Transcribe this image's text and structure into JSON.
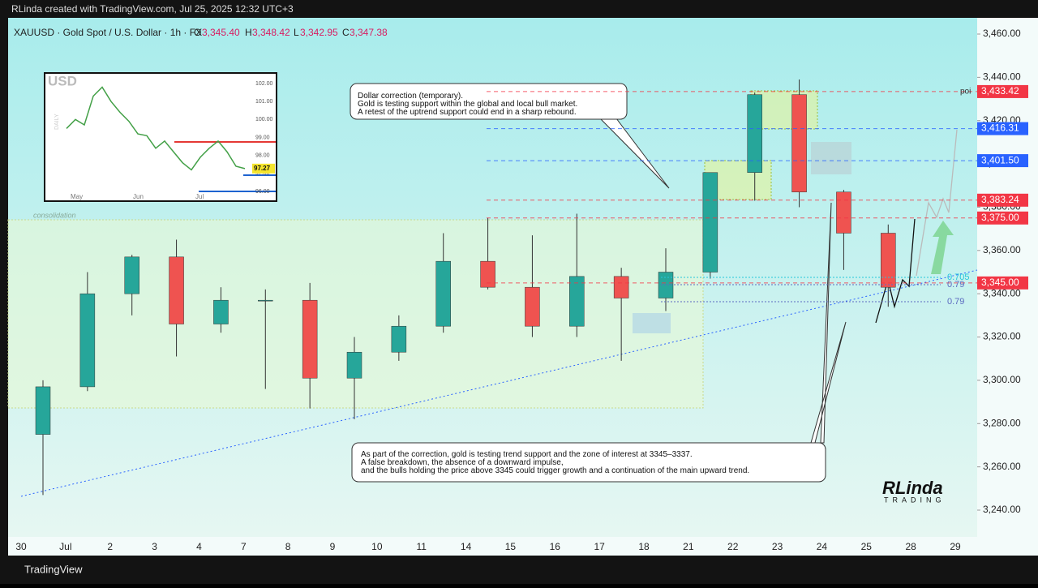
{
  "header": {
    "credit": "RLinda created with TradingView.com, Jul 25, 2025 12:32 UTC+3",
    "symbol": "XAUUSD · Gold Spot / U.S. Dollar · 1h · FX",
    "open_label": "O",
    "open": "3,345.40",
    "high_label": "H",
    "high": "3,348.42",
    "low_label": "L",
    "low": "3,342.95",
    "close_label": "C",
    "close": "3,347.38"
  },
  "chart_data": {
    "type": "candlestick",
    "categories": [
      "30",
      "Jul",
      "2",
      "3",
      "4",
      "7",
      "8",
      "9",
      "10",
      "11",
      "14",
      "15",
      "16",
      "17",
      "18",
      "21",
      "22",
      "23",
      "24",
      "25",
      "28",
      "29"
    ],
    "open": [
      3275,
      3297,
      3340,
      3357,
      3326,
      3337,
      3337,
      3301,
      3313,
      3325,
      3355,
      3343,
      3325,
      3348,
      3338,
      3350,
      3396,
      3432,
      3387,
      3368,
      null,
      null
    ],
    "high": [
      3300,
      3350,
      3358,
      3365,
      3343,
      3342,
      3345,
      3320,
      3330,
      3368,
      3375,
      3367,
      3377,
      3352,
      3361,
      3396,
      3433,
      3439,
      3388,
      3372,
      null,
      null
    ],
    "low": [
      3247,
      3295,
      3330,
      3311,
      3322,
      3296,
      3287,
      3282,
      3309,
      3322,
      3342,
      3320,
      3320,
      3309,
      3332,
      3347,
      3383,
      3380,
      3351,
      3334,
      null,
      null
    ],
    "close": [
      3297,
      3340,
      3357,
      3326,
      3337,
      3337,
      3301,
      3313,
      3325,
      3355,
      3343,
      3325,
      3348,
      3338,
      3350,
      3396,
      3432,
      3387,
      3368,
      3343,
      null,
      null
    ],
    "up_color": "#26a69a",
    "down_color": "#ef5350",
    "ylim": [
      3232,
      3467
    ],
    "yticks": [
      {
        "value": 3240,
        "label": "3,240.00"
      },
      {
        "value": 3260,
        "label": "3,260.00"
      },
      {
        "value": 3280,
        "label": "3,280.00"
      },
      {
        "value": 3300,
        "label": "3,300.00"
      },
      {
        "value": 3320,
        "label": "3,320.00"
      },
      {
        "value": 3340,
        "label": "3,340.00"
      },
      {
        "value": 3360,
        "label": "3,360.00"
      },
      {
        "value": 3380,
        "label": "3,380.00"
      },
      {
        "value": 3400,
        "label": "3,400.00"
      },
      {
        "value": 3420,
        "label": "3,420.00"
      },
      {
        "value": 3440,
        "label": "3,440.00"
      },
      {
        "value": 3460,
        "label": "3,460.00"
      }
    ],
    "levels": [
      {
        "value": 3433.42,
        "label": "3,433.42",
        "color": "#f23645"
      },
      {
        "value": 3416.31,
        "label": "3,416.31",
        "color": "#2962ff"
      },
      {
        "value": 3401.5,
        "label": "3,401.50",
        "color": "#2962ff"
      },
      {
        "value": 3383.24,
        "label": "3,383.24",
        "color": "#f23645"
      },
      {
        "value": 3375,
        "label": "3,375.00",
        "color": "#f23645"
      },
      {
        "value": 3345,
        "label": "3,345.00",
        "color": "#f23645"
      }
    ],
    "poi": "poi",
    "fib": [
      0.705,
      0.79,
      0.79
    ],
    "consolidation": "consolidation"
  },
  "annotations": [
    "Dollar correction (temporary).\nGold is testing support within the global and local bull market.\nA retest of the uptrend support could end in a sharp rebound.",
    "As part of the correction, gold is testing trend support and the zone of interest at 3345–3337.\nA false breakdown, the absence of a downward impulse,\nand the bulls holding the price above 3345 could trigger growth and a continuation of the main upward trend."
  ],
  "inset": {
    "title": "USD",
    "side": "DAILY",
    "months": [
      "May",
      "Jun",
      "Jul"
    ],
    "ylim": [
      95.7,
      102.3
    ],
    "yticks": [
      {
        "value": 96,
        "label": "96.00"
      },
      {
        "value": 97,
        "label": "97.00"
      },
      {
        "value": 98,
        "label": "98.00"
      },
      {
        "value": 99,
        "label": "99.00"
      },
      {
        "value": 100,
        "label": "100.00"
      },
      {
        "value": 101,
        "label": "101.00"
      },
      {
        "value": 102,
        "label": "102.00"
      }
    ],
    "values": [
      99.5,
      100,
      99.7,
      101.3,
      101.8,
      101,
      100.4,
      99.9,
      99.2,
      99.1,
      98.4,
      98.8,
      98.2,
      97.6,
      97.2,
      97.9,
      98.4,
      98.8,
      98.2,
      97.4,
      97.27
    ],
    "last": {
      "value": 97.27,
      "label": "97.27"
    }
  },
  "logo": {
    "name": "RLinda",
    "sub": "TRADING"
  },
  "footer": "TradingView"
}
